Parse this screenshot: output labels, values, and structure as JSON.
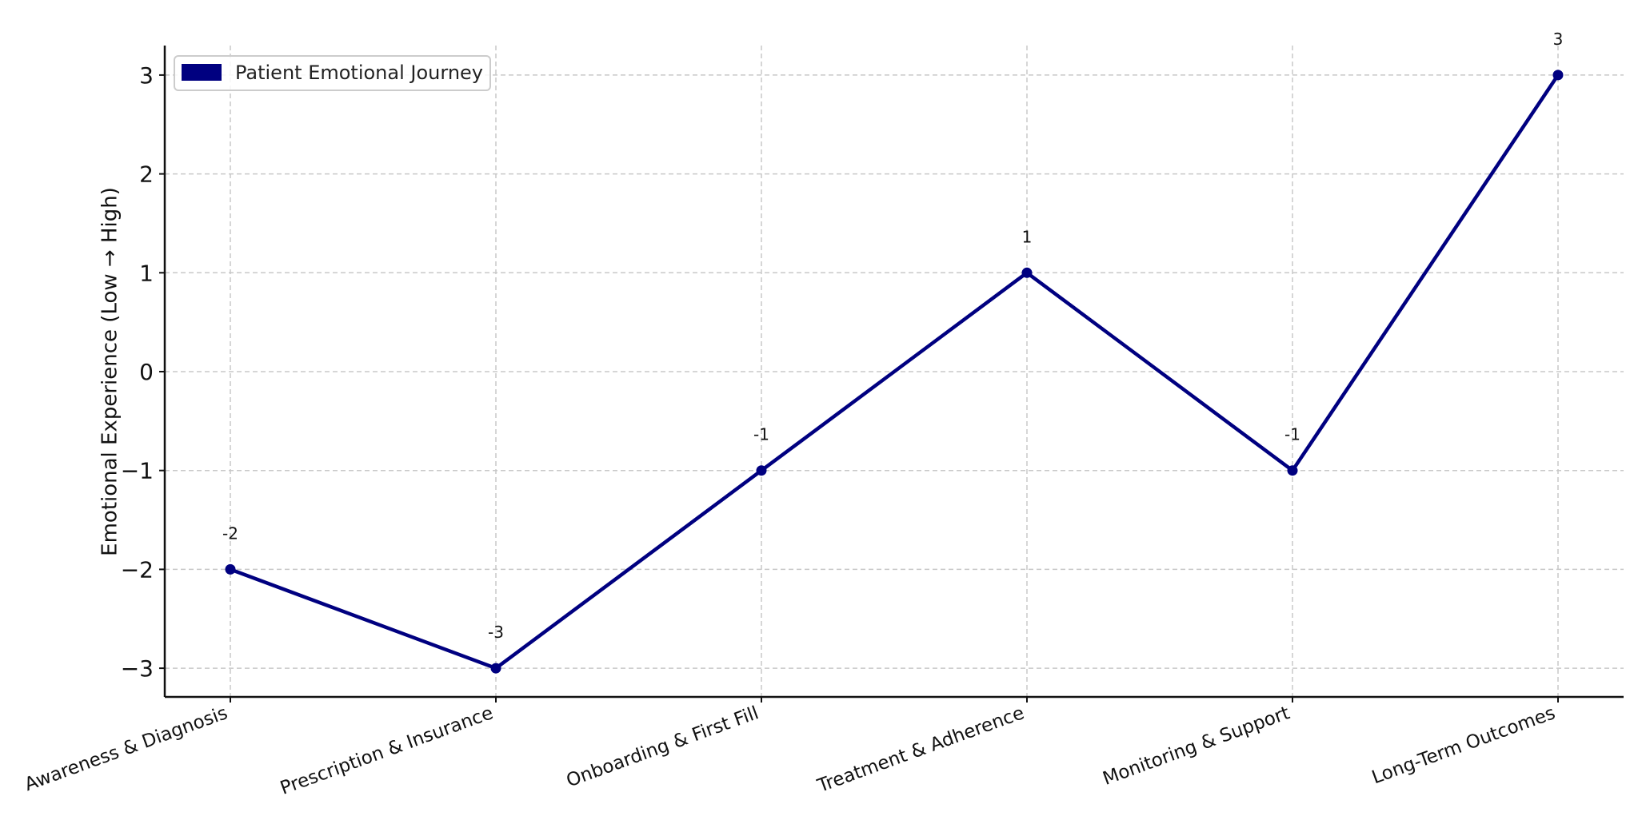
{
  "chart_data": {
    "type": "line",
    "title": "",
    "xlabel": "",
    "ylabel": "Emotional Experience (Low → High)",
    "categories": [
      "Awareness & Diagnosis",
      "Prescription & Insurance",
      "Onboarding & First Fill",
      "Treatment & Adherence",
      "Monitoring & Support",
      "Long-Term Outcomes"
    ],
    "series": [
      {
        "name": "Patient Emotional Journey",
        "color": "#000080",
        "values": [
          -2,
          -3,
          -1,
          1,
          -1,
          3
        ],
        "markers": true
      }
    ],
    "data_labels": [
      "-2",
      "-3",
      "-1",
      "1",
      "-1",
      "3"
    ],
    "ylim": [
      -3.3,
      3.3
    ],
    "yticks": [
      -3,
      -2,
      -1,
      0,
      1,
      2,
      3
    ],
    "ytick_labels": [
      "−3",
      "−2",
      "−1",
      "0",
      "1",
      "2",
      "3"
    ],
    "grid": true,
    "grid_style": "dashed",
    "legend_position": "upper left"
  },
  "legend": {
    "label": "Patient Emotional Journey",
    "color": "#000080"
  }
}
